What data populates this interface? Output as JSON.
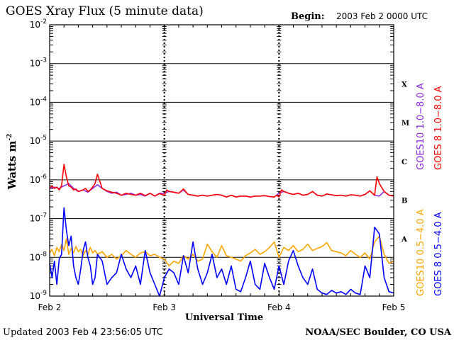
{
  "header": {
    "title": "GOES Xray Flux (5 minute data)",
    "begin_label": "Begin:",
    "begin_value": "2003 Feb 2 0000 UTC"
  },
  "footer": {
    "updated_label": "Updated",
    "updated_value": "2003 Feb  4 23:56:05 UTC",
    "credit": "NOAA/SEC Boulder, CO USA"
  },
  "chart_data": {
    "type": "line",
    "title": "GOES Xray Flux (5 minute data)",
    "xlabel": "Universal Time",
    "ylabel": "Watts m",
    "ylabel_sup": "-2",
    "yscale": "log",
    "ylim": [
      1e-09,
      0.01
    ],
    "xlim": [
      0,
      72
    ],
    "x_unit": "hours since 2003 Feb 2 0000 UTC",
    "x_tick_labels": [
      "Feb 2",
      "Feb 3",
      "Feb 4",
      "Feb 5"
    ],
    "x_ticks": [
      0,
      24,
      48,
      72
    ],
    "y_tick_labels": [
      {
        "base": "10",
        "exp": "-2"
      },
      {
        "base": "10",
        "exp": "-3"
      },
      {
        "base": "10",
        "exp": "-4"
      },
      {
        "base": "10",
        "exp": "-5"
      },
      {
        "base": "10",
        "exp": "-6"
      },
      {
        "base": "10",
        "exp": "-7"
      },
      {
        "base": "10",
        "exp": "-8"
      },
      {
        "base": "10",
        "exp": "-9"
      }
    ],
    "y_tick_values": [
      0.01,
      0.001,
      0.0001,
      1e-05,
      1e-06,
      1e-07,
      1e-08,
      1e-09
    ],
    "flare_classes": [
      {
        "label": "X",
        "value": 0.0003
      },
      {
        "label": "M",
        "value": 3e-05
      },
      {
        "label": "C",
        "value": 3e-06
      },
      {
        "label": "B",
        "value": 3e-07
      },
      {
        "label": "A",
        "value": 3e-08
      }
    ],
    "grid": true,
    "series": [
      {
        "name": "GOES10 0.5−4.0 A",
        "color": "#ffa500",
        "x": [
          0,
          0.5,
          1,
          1.5,
          2,
          2.5,
          3,
          3.5,
          4,
          4.5,
          5,
          5.5,
          6,
          6.5,
          7,
          7.5,
          8,
          8.5,
          9,
          9.5,
          10,
          11,
          12,
          13,
          14,
          15,
          16,
          17,
          18,
          19,
          20,
          21,
          22,
          23,
          24,
          25,
          26,
          27,
          28,
          29,
          30,
          31,
          32,
          33,
          34,
          35,
          36,
          37,
          38,
          39,
          40,
          41,
          42,
          43,
          44,
          45,
          46,
          47,
          48,
          49,
          50,
          51,
          52,
          53,
          54,
          55,
          56,
          57,
          58,
          59,
          60,
          61,
          62,
          63,
          64,
          65,
          66,
          67,
          68,
          69,
          70,
          71,
          72
        ],
        "y": [
          1.3e-08,
          1.6e-08,
          1.1e-08,
          1.8e-08,
          1.4e-08,
          2.2e-08,
          1.5e-08,
          3e-08,
          1.2e-08,
          1.7e-08,
          1.3e-08,
          1.9e-08,
          1.4e-08,
          1.6e-08,
          1.1e-08,
          1.5e-08,
          1.2e-08,
          1.8e-08,
          1.3e-08,
          1.5e-08,
          1.2e-08,
          1.4e-08,
          1e-08,
          1.2e-08,
          9e-09,
          1.1e-08,
          1.5e-08,
          1.2e-08,
          1e-08,
          1.3e-08,
          1.4e-08,
          1.1e-08,
          1.2e-08,
          1e-08,
          9e-09,
          6e-09,
          8e-09,
          7e-09,
          1.1e-08,
          9e-09,
          1.2e-08,
          8e-09,
          9e-09,
          2.2e-08,
          1.4e-08,
          1e-08,
          2e-08,
          1.1e-08,
          1e-08,
          9e-09,
          8e-09,
          1.1e-08,
          1.3e-08,
          1.6e-08,
          1.2e-08,
          1.4e-08,
          1.8e-08,
          2.5e-08,
          1e-08,
          1.8e-08,
          1.5e-08,
          2e-08,
          1.4e-08,
          1.6e-08,
          2.2e-08,
          1.5e-08,
          1.7e-08,
          1.9e-08,
          2.4e-08,
          1.5e-08,
          1.4e-08,
          1.3e-08,
          1.1e-08,
          1.5e-08,
          1.2e-08,
          1e-08,
          1.3e-08,
          9e-09,
          2.5e-08,
          3.5e-08,
          1.2e-08,
          7e-09,
          8e-09
        ]
      },
      {
        "name": "GOES 8 0.5−4.0 A",
        "color": "#0000ff",
        "x": [
          0,
          0.5,
          1,
          1.5,
          2,
          2.5,
          3,
          3.5,
          4,
          4.5,
          5,
          5.5,
          6,
          6.5,
          7,
          7.5,
          8,
          8.5,
          9,
          9.5,
          10,
          11,
          12,
          13,
          14,
          15,
          16,
          17,
          18,
          19,
          20,
          21,
          22,
          23,
          24,
          25,
          26,
          27,
          28,
          29,
          30,
          31,
          32,
          33,
          34,
          35,
          36,
          37,
          38,
          39,
          40,
          41,
          42,
          43,
          44,
          45,
          46,
          47,
          48,
          49,
          50,
          51,
          52,
          53,
          54,
          55,
          56,
          57,
          58,
          59,
          60,
          61,
          62,
          63,
          64,
          65,
          66,
          67,
          68,
          69,
          70,
          71,
          72
        ],
        "y": [
          7e-09,
          3e-09,
          8e-09,
          2e-09,
          9e-09,
          1.2e-08,
          1.9e-07,
          5e-08,
          2e-08,
          3.5e-08,
          6e-09,
          3e-09,
          2e-09,
          5e-09,
          1.5e-08,
          2.5e-08,
          1e-08,
          6e-09,
          2e-09,
          3e-09,
          1.2e-08,
          8e-09,
          2e-09,
          3e-09,
          4e-09,
          1.2e-08,
          5e-09,
          3e-09,
          6e-09,
          2e-09,
          1.5e-08,
          4e-09,
          2e-09,
          1e-09,
          3e-09,
          5e-09,
          4e-09,
          2e-09,
          1.1e-08,
          4e-09,
          2.5e-08,
          5e-09,
          2e-09,
          4e-09,
          1.2e-08,
          3e-09,
          5e-09,
          2e-09,
          6e-09,
          1.5e-09,
          1.3e-09,
          3e-09,
          8e-09,
          2e-09,
          1.5e-09,
          7e-09,
          3e-09,
          1.5e-09,
          6e-09,
          2e-09,
          8e-09,
          1.5e-08,
          6e-09,
          3e-09,
          2e-09,
          5e-09,
          1.5e-09,
          1.2e-09,
          1.1e-09,
          1.4e-09,
          1.2e-09,
          1.3e-09,
          1.1e-09,
          1.5e-09,
          1.2e-09,
          1.1e-09,
          6e-09,
          3e-09,
          6e-08,
          4e-08,
          3e-09,
          1.3e-09,
          1.2e-09
        ]
      },
      {
        "name": "GOES10 1.0−8.0 A",
        "color": "#8a2be2",
        "x": [
          0,
          1,
          2,
          3,
          4,
          5,
          6,
          7,
          8,
          9,
          10,
          11,
          12,
          13,
          14,
          15,
          16,
          17,
          18,
          19,
          20,
          21,
          22,
          23,
          24,
          25,
          26,
          27,
          28,
          29,
          30,
          31,
          32,
          33,
          34,
          35,
          36,
          37,
          38,
          39,
          40,
          41,
          42,
          43,
          44,
          45,
          46,
          47,
          48,
          49,
          50,
          51,
          52,
          53,
          54,
          55,
          56,
          57,
          58,
          59,
          60,
          61,
          62,
          63,
          64,
          65,
          66,
          67,
          68,
          69,
          70,
          71,
          72
        ],
        "y": [
          6e-07,
          6.5e-07,
          6e-07,
          7e-07,
          8e-07,
          6e-07,
          5e-07,
          5.5e-07,
          4.8e-07,
          6e-07,
          7.5e-07,
          6e-07,
          5e-07,
          4.5e-07,
          4.8e-07,
          4e-07,
          4.2e-07,
          4.5e-07,
          4e-07,
          4.2e-07,
          3.8e-07,
          4.5e-07,
          3.8e-07,
          4.5e-07,
          4.5e-07,
          5e-07,
          4.8e-07,
          4.5e-07,
          5.5e-07,
          4.2e-07,
          4e-07,
          3.8e-07,
          4e-07,
          3.8e-07,
          4e-07,
          4.2e-07,
          4e-07,
          3.6e-07,
          4e-07,
          3.6e-07,
          3.8e-07,
          3.8e-07,
          3.6e-07,
          3.8e-07,
          3.8e-07,
          3.9e-07,
          3.7e-07,
          3.6e-07,
          4.5e-07,
          5e-07,
          4.5e-07,
          4.2e-07,
          4.5e-07,
          4e-07,
          4.2e-07,
          5e-07,
          4e-07,
          3.8e-07,
          4.3e-07,
          4.1e-07,
          3.9e-07,
          4e-07,
          3.8e-07,
          4.1e-07,
          4e-07,
          3.8e-07,
          4.2e-07,
          5.2e-07,
          4e-07,
          3.8e-07,
          5e-07,
          4e-07,
          3.8e-07
        ]
      },
      {
        "name": "GOES 8 1.0−8.0 A",
        "color": "#ff0000",
        "x": [
          0,
          0.5,
          1,
          1.5,
          2,
          2.5,
          3,
          3.5,
          4,
          4.5,
          5,
          5.5,
          6,
          6.5,
          7,
          7.5,
          8,
          8.5,
          9,
          9.5,
          10,
          11,
          12,
          13,
          14,
          15,
          16,
          17,
          18,
          19,
          20,
          21,
          22,
          23,
          24,
          24.5,
          25,
          26,
          27,
          28,
          29,
          30,
          31,
          32,
          33,
          34,
          35,
          36,
          37,
          38,
          39,
          40,
          41,
          42,
          43,
          44,
          45,
          46,
          47,
          47.5,
          48,
          48.5,
          49,
          50,
          51,
          52,
          53,
          54,
          55,
          56,
          57,
          58,
          59,
          60,
          61,
          62,
          63,
          64,
          65,
          66,
          67,
          68,
          68.5,
          69,
          70,
          71,
          72
        ],
        "y": [
          6.2e-07,
          6.8e-07,
          6e-07,
          6.5e-07,
          5.5e-07,
          7e-07,
          2.5e-06,
          1.2e-06,
          7e-07,
          6.5e-07,
          5.5e-07,
          5.8e-07,
          5e-07,
          5.2e-07,
          5.5e-07,
          6e-07,
          5e-07,
          5.5e-07,
          6.5e-07,
          8e-07,
          1.4e-06,
          6e-07,
          5.2e-07,
          4.8e-07,
          4.5e-07,
          4e-07,
          4.5e-07,
          4.2e-07,
          4e-07,
          4.5e-07,
          3.9e-07,
          4.5e-07,
          3.8e-07,
          4.4e-07,
          4e-07,
          5.5e-07,
          5e-07,
          4.8e-07,
          4.5e-07,
          5.8e-07,
          4.2e-07,
          4e-07,
          3.8e-07,
          4e-07,
          3.8e-07,
          4e-07,
          4.2e-07,
          4e-07,
          3.6e-07,
          4e-07,
          3.6e-07,
          3.8e-07,
          3.8e-07,
          3.6e-07,
          3.8e-07,
          3.8e-07,
          3.9e-07,
          3.7e-07,
          3.6e-07,
          4e-07,
          3.6e-07,
          5.5e-07,
          5e-07,
          4.5e-07,
          4.2e-07,
          4.5e-07,
          4e-07,
          4.2e-07,
          5e-07,
          4e-07,
          3.8e-07,
          4.3e-07,
          4.1e-07,
          3.9e-07,
          4e-07,
          3.8e-07,
          4.1e-07,
          4e-07,
          3.8e-07,
          4.2e-07,
          5.2e-07,
          4e-07,
          1.2e-06,
          8e-07,
          5e-07,
          4e-07,
          3.8e-07
        ]
      }
    ]
  }
}
